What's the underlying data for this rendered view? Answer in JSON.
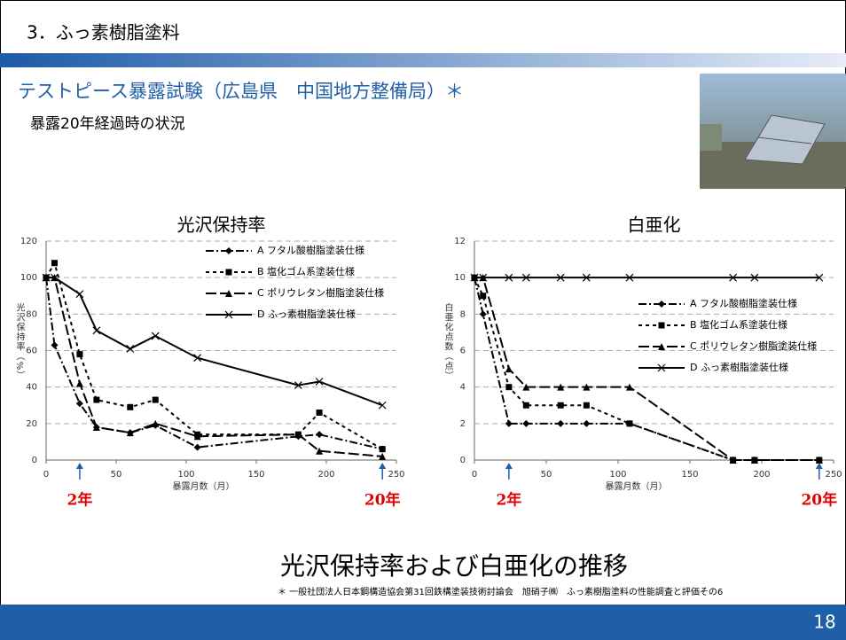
{
  "header": {
    "title": "3．ふっ素樹脂塗料"
  },
  "subtitle": "テストピース暴露試験（広島県　中国地方整備局）＊",
  "note": "暴露20年経過時の状況",
  "caption": "光沢保持率および白亜化の推移",
  "footnote": "＊ 一般社団法人日本鋼構造協会第31回鉄構塗装技術討論会　旭硝子㈱　ふっ素樹脂塗料の性能調査と評価その6",
  "page_number": "18",
  "chart_data": [
    {
      "type": "line",
      "title": "光沢保持率",
      "x_label": "暴露月数（月）",
      "y_label": "光沢保持率（%）",
      "x": [
        0,
        6,
        24,
        36,
        60,
        78,
        108,
        180,
        195,
        240
      ],
      "xlim": [
        0,
        250
      ],
      "xticks": [
        0,
        50,
        100,
        150,
        200,
        250
      ],
      "ylim": [
        0,
        120
      ],
      "yticks": [
        0,
        20,
        40,
        60,
        80,
        100,
        120
      ],
      "grid": true,
      "legend": "upper right",
      "series": [
        {
          "name": "A フタル酸樹脂塗装仕様",
          "color": "#000000",
          "marker": "diamond",
          "dash": "9,3,2,3",
          "values": [
            100,
            63,
            31,
            18,
            15,
            19,
            7,
            13,
            14,
            6
          ]
        },
        {
          "name": "B 塩化ゴム系塗装仕様",
          "color": "#000000",
          "marker": "square",
          "dash": "4,4",
          "values": [
            100,
            108,
            58,
            33,
            29,
            33,
            14,
            14,
            26,
            6
          ]
        },
        {
          "name": "C ポリウレタン樹脂塗装仕様",
          "color": "#000000",
          "marker": "triangle",
          "dash": "12,4",
          "values": [
            100,
            100,
            42,
            18,
            15,
            20,
            13,
            14,
            5,
            2
          ]
        },
        {
          "name": "D ふっ素樹脂塗装仕様",
          "color": "#000000",
          "marker": "x",
          "dash": "none",
          "values": [
            100,
            100,
            91,
            71,
            61,
            68,
            56,
            41,
            43,
            30
          ]
        }
      ],
      "annotations": [
        {
          "text": "2年",
          "x": 24
        },
        {
          "text": "20年",
          "x": 240
        }
      ]
    },
    {
      "type": "line",
      "title": "白亜化",
      "x_label": "暴露月数（月）",
      "y_label": "白亜化点数（点）",
      "x": [
        0,
        6,
        24,
        36,
        60,
        78,
        108,
        180,
        195,
        240
      ],
      "xlim": [
        0,
        250
      ],
      "xticks": [
        0,
        50,
        100,
        150,
        200,
        250
      ],
      "ylim": [
        0,
        12
      ],
      "yticks": [
        0,
        2,
        4,
        6,
        8,
        10,
        12
      ],
      "grid": true,
      "legend": "center right",
      "series": [
        {
          "name": "A フタル酸樹脂塗装仕様",
          "color": "#000000",
          "marker": "diamond",
          "dash": "9,3,2,3",
          "values": [
            10,
            8,
            2,
            2,
            2,
            2,
            2,
            0,
            0,
            0
          ]
        },
        {
          "name": "B 塩化ゴム系塗装仕様",
          "color": "#000000",
          "marker": "square",
          "dash": "4,4",
          "values": [
            10,
            9,
            4,
            3,
            3,
            3,
            2,
            0,
            0,
            0
          ]
        },
        {
          "name": "C ポリウレタン樹脂塗装仕様",
          "color": "#000000",
          "marker": "triangle",
          "dash": "12,4",
          "values": [
            10,
            10,
            5,
            4,
            4,
            4,
            4,
            0,
            0,
            0
          ]
        },
        {
          "name": "D ふっ素樹脂塗装仕様",
          "color": "#000000",
          "marker": "x",
          "dash": "none",
          "values": [
            10,
            10,
            10,
            10,
            10,
            10,
            10,
            10,
            10,
            10
          ]
        }
      ],
      "annotations": [
        {
          "text": "2年",
          "x": 24
        },
        {
          "text": "20年",
          "x": 240
        }
      ]
    }
  ]
}
